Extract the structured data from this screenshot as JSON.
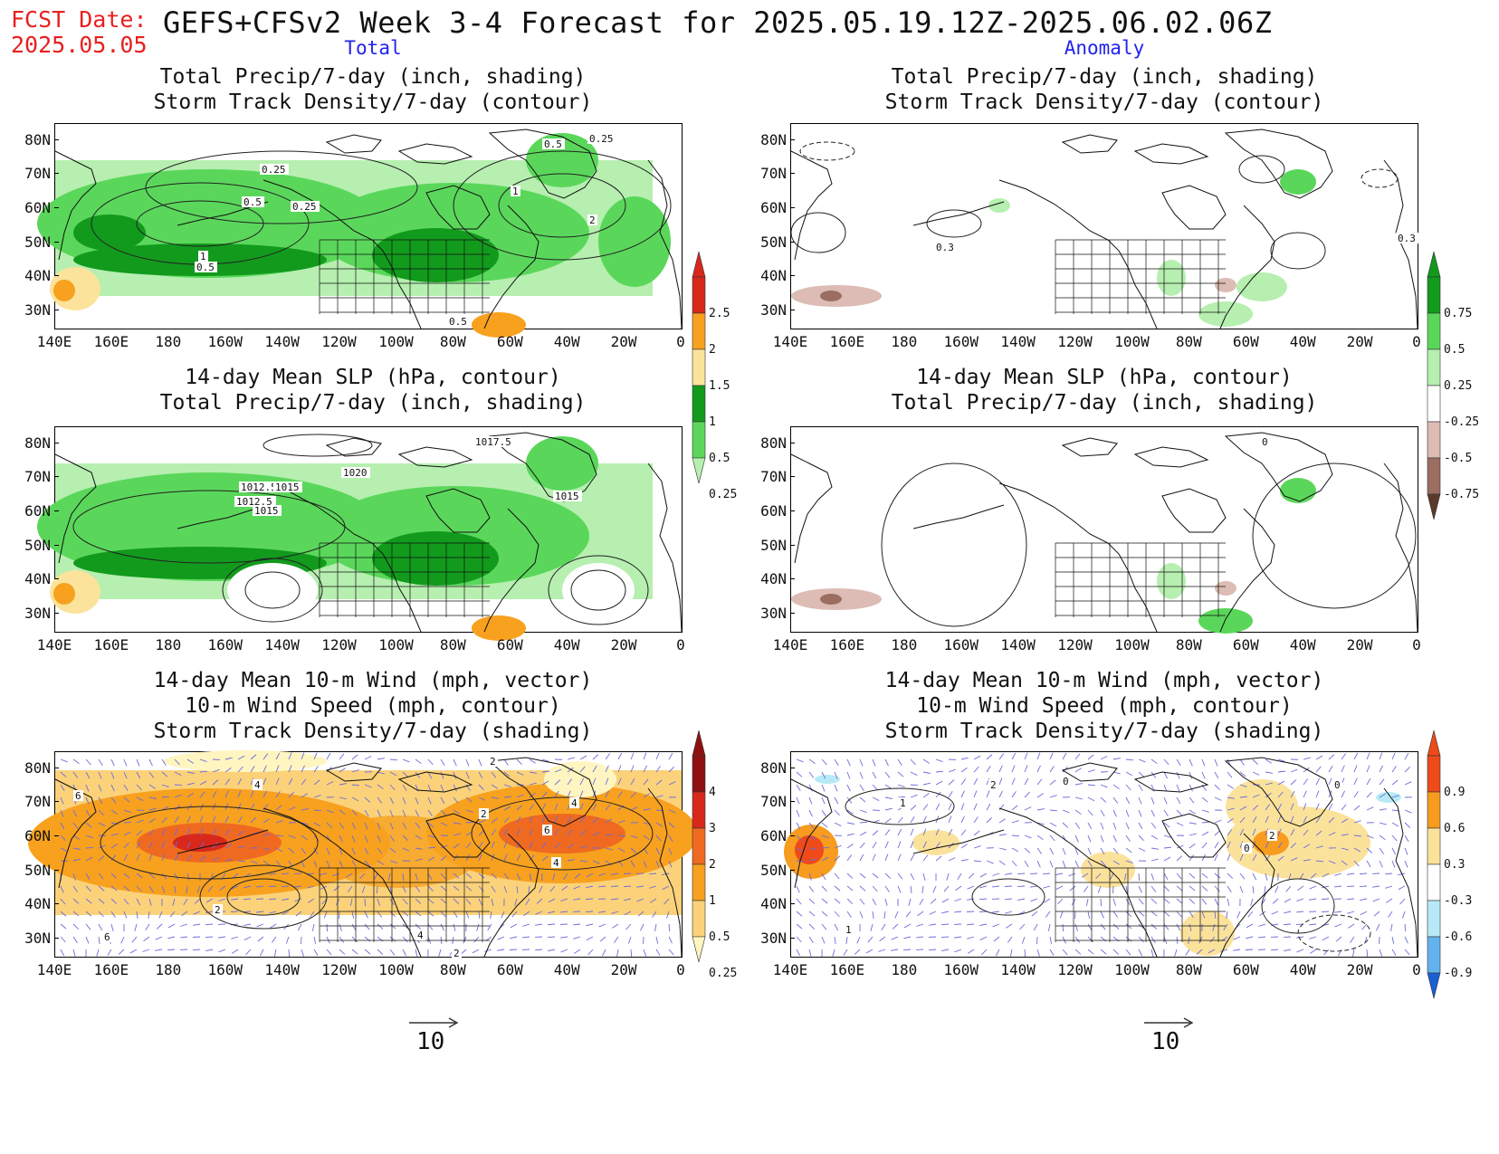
{
  "header": {
    "fcst_label": "FCST Date:",
    "fcst_date": "2025.05.05",
    "title": "GEFS+CFSv2 Week 3-4 Forecast for 2025.05.19.12Z-2025.06.02.06Z"
  },
  "columns": {
    "left": "Total",
    "right": "Anomaly"
  },
  "rows": [
    {
      "line1": "Total Precip/7-day (inch, shading)",
      "line2": "Storm Track Density/7-day (contour)",
      "line3": ""
    },
    {
      "line1": "14-day Mean SLP (hPa, contour)",
      "line2": "Total Precip/7-day (inch, shading)",
      "line3": ""
    },
    {
      "line1": "14-day Mean 10-m Wind (mph, vector)",
      "line2": "10-m Wind Speed (mph, contour)",
      "line3": "Storm Track Density/7-day (shading)"
    }
  ],
  "axes": {
    "lat_labels": [
      "80N",
      "70N",
      "60N",
      "50N",
      "40N",
      "30N"
    ],
    "lon_labels": [
      "140E",
      "160E",
      "180",
      "160W",
      "140W",
      "120W",
      "100W",
      "80W",
      "60W",
      "40W",
      "20W",
      "0"
    ]
  },
  "colorbars": {
    "precip_total": {
      "labels": [
        "2.5",
        "2",
        "1.5",
        "1",
        "0.5",
        "0.25"
      ],
      "colors": [
        "#d8281c",
        "#f7a11f",
        "#fbe39b",
        "#129a1d",
        "#5ad75a",
        "#b6efb0"
      ]
    },
    "precip_anom": {
      "labels": [
        "0.75",
        "0.5",
        "0.25",
        "-0.25",
        "-0.5",
        "-0.75"
      ],
      "colors": [
        "#129a1d",
        "#5ad75a",
        "#b6efb0",
        "#ffffff",
        "#dcbcb4",
        "#9b6e61",
        "#5a3a2c"
      ]
    },
    "storm_total": {
      "labels": [
        "4",
        "3",
        "2",
        "1",
        "0.5",
        "0.25"
      ],
      "colors": [
        "#8f1010",
        "#d8281c",
        "#ef6a20",
        "#f7a11f",
        "#fbd27a",
        "#fff5c0"
      ]
    },
    "storm_anom": {
      "labels": [
        "0.9",
        "0.6",
        "0.3",
        "-0.3",
        "-0.6",
        "-0.9"
      ],
      "colors": [
        "#ef4a1a",
        "#f79c1f",
        "#fbe29b",
        "#ffffff",
        "#b7eaf6",
        "#62b2ee",
        "#1a5fd6"
      ]
    }
  },
  "contour_labels": {
    "p11": [
      "0.5",
      "0.25",
      "0.25",
      "0.5",
      "0.25",
      "1",
      "2",
      "1",
      "0.5",
      "0.5"
    ],
    "p21": [
      "1017.5",
      "1020",
      "1012.5",
      "1015",
      "1012.5",
      "1015",
      "1015"
    ],
    "p22": [
      "0"
    ],
    "p31": [
      "6",
      "4",
      "2",
      "2",
      "6",
      "4",
      "2",
      "4",
      "6",
      "4",
      "2"
    ],
    "p32": [
      "2",
      "0",
      "0",
      "1",
      "2",
      "0",
      "1"
    ]
  },
  "vector_ref": {
    "value": "10"
  }
}
